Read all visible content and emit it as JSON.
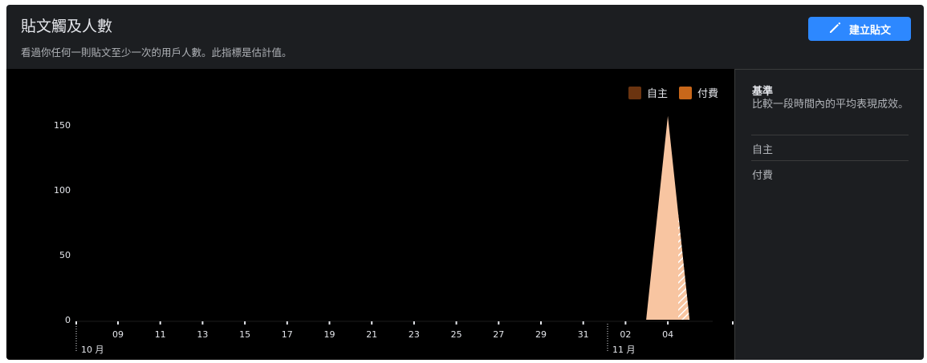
{
  "header": {
    "title": "貼文觸及人數",
    "subtitle": "看過你任何一則貼文至少一次的用戶人數。此指標是估計值。",
    "create_button_label": "建立貼文"
  },
  "legend": [
    {
      "label": "自主",
      "color": "#6b3410"
    },
    {
      "label": "付費",
      "color": "#c8671a"
    }
  ],
  "side_panel": {
    "title": "基準",
    "description": "比較一段時間內的平均表現成效。",
    "items": [
      "自主",
      "付費"
    ]
  },
  "chart_data": {
    "type": "area",
    "y_ticks": [
      0,
      50,
      100,
      150
    ],
    "ylim": [
      0,
      160
    ],
    "x_tick_labels": [
      "09",
      "11",
      "13",
      "15",
      "17",
      "19",
      "21",
      "23",
      "25",
      "27",
      "29",
      "31",
      "02",
      "04"
    ],
    "month_labels": [
      "10 月",
      "11 月"
    ],
    "series": [
      {
        "name": "自主",
        "color": "#f8c5a1",
        "peak_label": "04",
        "peak_value": 157
      },
      {
        "name": "付費",
        "color": "#c8671a",
        "peak_label": "04",
        "peak_value": 0
      }
    ],
    "grid": false
  }
}
